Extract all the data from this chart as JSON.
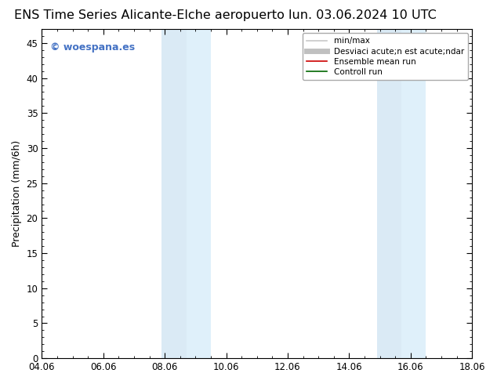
{
  "title_left": "ENS Time Series Alicante-Elche aeropuerto",
  "title_right": "lun. 03.06.2024 10 UTC",
  "ylabel": "Precipitation (mm/6h)",
  "xlim_dates": [
    "04.06",
    "06.06",
    "08.06",
    "10.06",
    "12.06",
    "14.06",
    "16.06",
    "18.06"
  ],
  "xlim": [
    0,
    14
  ],
  "ylim": [
    0,
    47
  ],
  "yticks": [
    0,
    5,
    10,
    15,
    20,
    25,
    30,
    35,
    40,
    45
  ],
  "shaded_regions": [
    {
      "xmin": 3.9,
      "xmax": 4.7,
      "color": "#daeaf5"
    },
    {
      "xmin": 4.7,
      "xmax": 5.5,
      "color": "#dff0fa"
    },
    {
      "xmin": 10.9,
      "xmax": 11.7,
      "color": "#daeaf5"
    },
    {
      "xmin": 11.7,
      "xmax": 12.5,
      "color": "#dff0fa"
    }
  ],
  "background_color": "#ffffff",
  "plot_bg_color": "#ffffff",
  "watermark_text": "© woespana.es",
  "watermark_color": "#4472c4",
  "legend_entries": [
    {
      "label": "min/max",
      "color": "#c8c8c8",
      "lw": 1.2,
      "ls": "-"
    },
    {
      "label": "Desviaci acute;n est acute;ndar",
      "color": "#c0c0c0",
      "lw": 5,
      "ls": "-"
    },
    {
      "label": "Ensemble mean run",
      "color": "#cc0000",
      "lw": 1.2,
      "ls": "-"
    },
    {
      "label": "Controll run",
      "color": "#006600",
      "lw": 1.2,
      "ls": "-"
    }
  ],
  "tick_label_fontsize": 8.5,
  "axis_label_fontsize": 9,
  "title_fontsize": 11.5,
  "spine_color": "#000000"
}
